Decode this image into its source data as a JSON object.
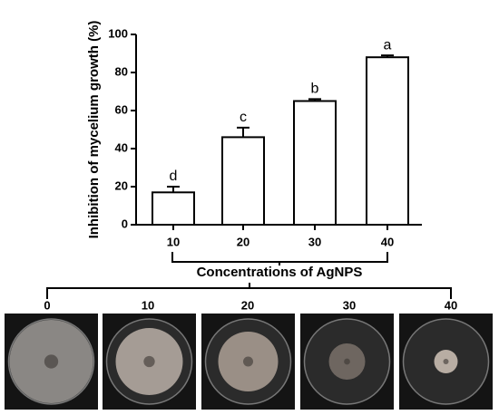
{
  "chart_data": {
    "type": "bar",
    "y_label": "Inhibition of mycelium growth (%)",
    "x_label": "Concentrations of AgNPS",
    "categories": [
      "10",
      "20",
      "30",
      "40"
    ],
    "values": [
      17,
      46,
      65,
      88
    ],
    "errors": [
      3,
      5,
      1,
      1
    ],
    "significance_labels": [
      "d",
      "c",
      "b",
      "a"
    ],
    "color": "#ffffff",
    "ylim": [
      0,
      100
    ],
    "yticks": [
      0,
      20,
      40,
      60,
      80,
      100
    ],
    "grid": false
  },
  "photos": {
    "labels": [
      "0",
      "10",
      "20",
      "30",
      "40"
    ]
  }
}
